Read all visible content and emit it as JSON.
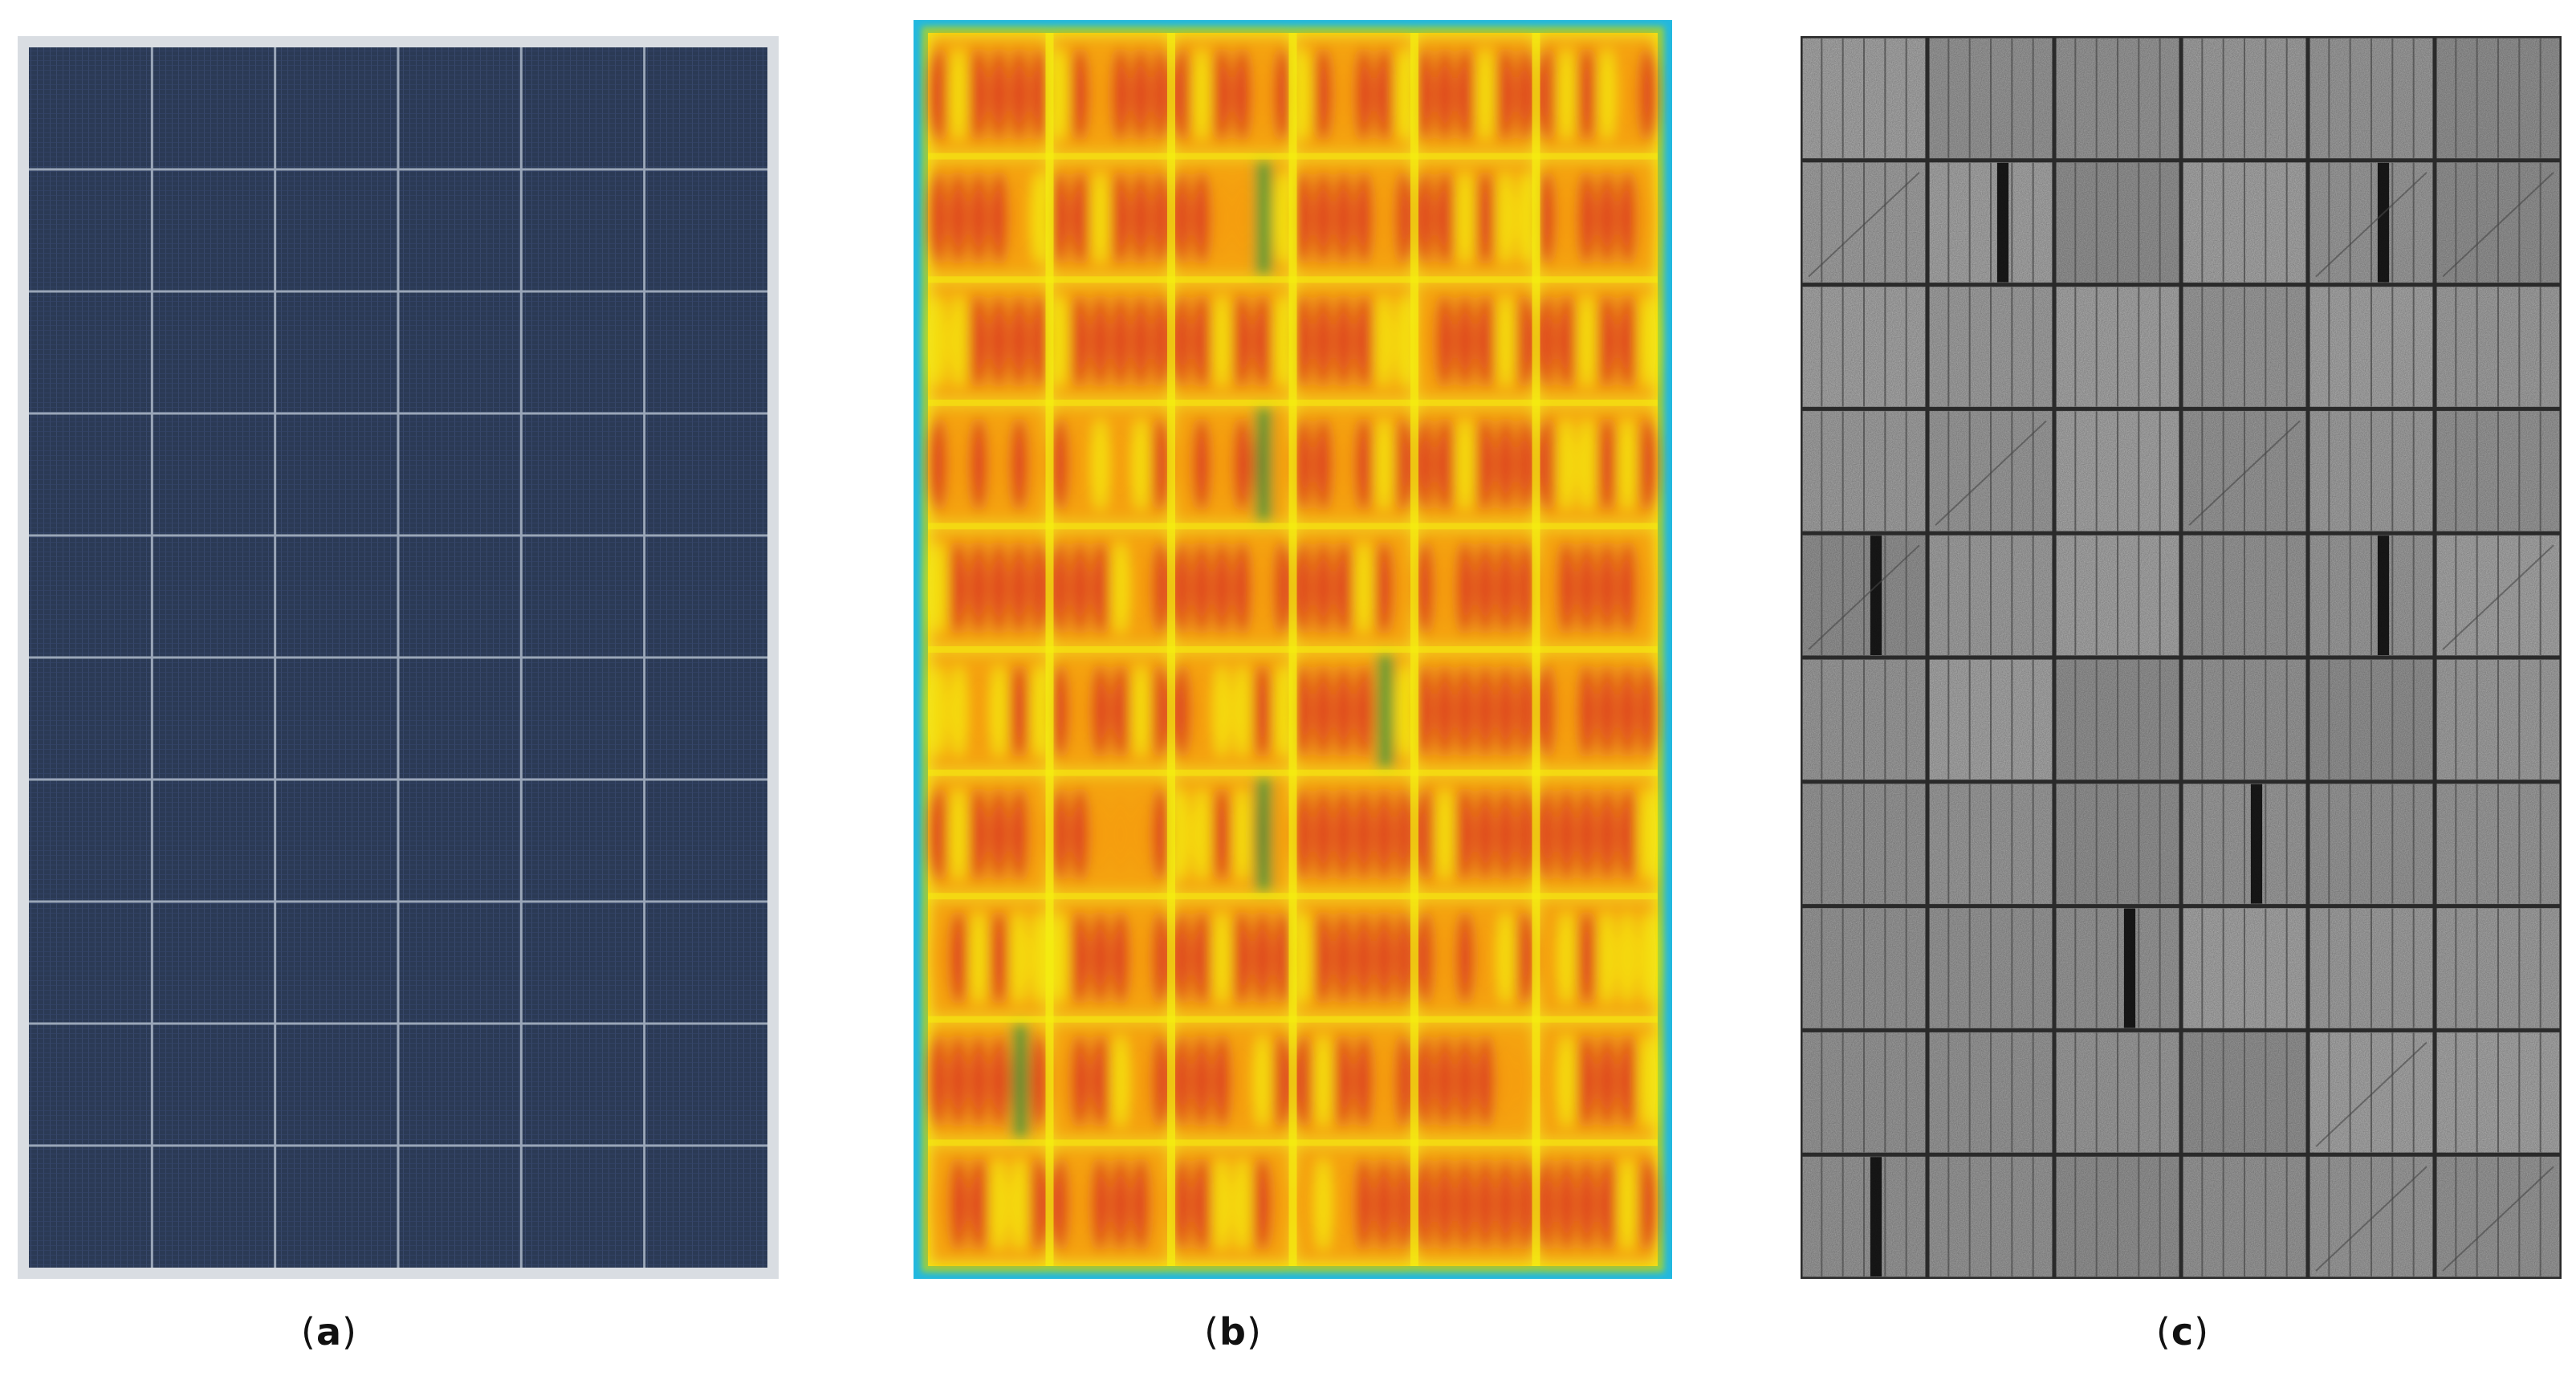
{
  "figure": {
    "panels": [
      {
        "id": "a",
        "label": "a",
        "kind": "visible-photo",
        "rows": 10,
        "cols": 6
      },
      {
        "id": "b",
        "label": "b",
        "kind": "thermal-image",
        "rows": 10,
        "cols": 6
      },
      {
        "id": "c",
        "label": "c",
        "kind": "electroluminescence-image",
        "rows": 10,
        "cols": 6
      }
    ],
    "colors": {
      "panel_a_cell": "#2b3a55",
      "panel_a_grid": "#9aa6b8",
      "thermal_hot": "#d81f1f",
      "thermal_mid": "#f59a12",
      "thermal_warm": "#f4ef10",
      "thermal_cool": "#1f9a3a",
      "thermal_edge": "#22b8e0",
      "el_base": "#a9a9a9",
      "el_dark": "#1a1a1a"
    }
  }
}
